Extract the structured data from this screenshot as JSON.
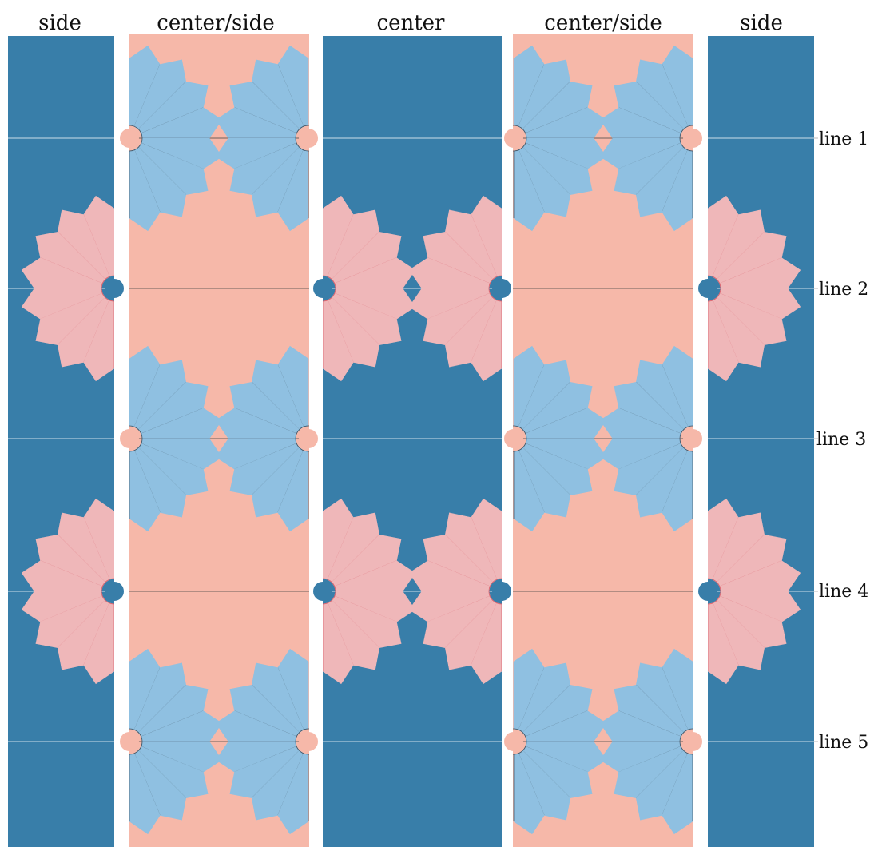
{
  "colors": {
    "navy_strip": "#387ea9",
    "salmon_strip": "#f6b8a9",
    "pink_fan": "#efb7b9",
    "pink_rib": "#d85a66",
    "blue_fan": "#8fc0e1",
    "blue_rib": "#3f4e5c",
    "guide_on_navy": "#dbe8f1",
    "guide_on_salmon": "#4a4a4a"
  },
  "columns": [
    {
      "title": "side",
      "fill": "navy"
    },
    {
      "title": "center/side",
      "fill": "salmon"
    },
    {
      "title": "center",
      "fill": "navy"
    },
    {
      "title": "center/side",
      "fill": "salmon"
    },
    {
      "title": "side",
      "fill": "navy"
    }
  ],
  "lines": [
    {
      "label": "line 1"
    },
    {
      "label": "line 2"
    },
    {
      "label": "line 3"
    },
    {
      "label": "line 4"
    },
    {
      "label": "line 5"
    }
  ]
}
